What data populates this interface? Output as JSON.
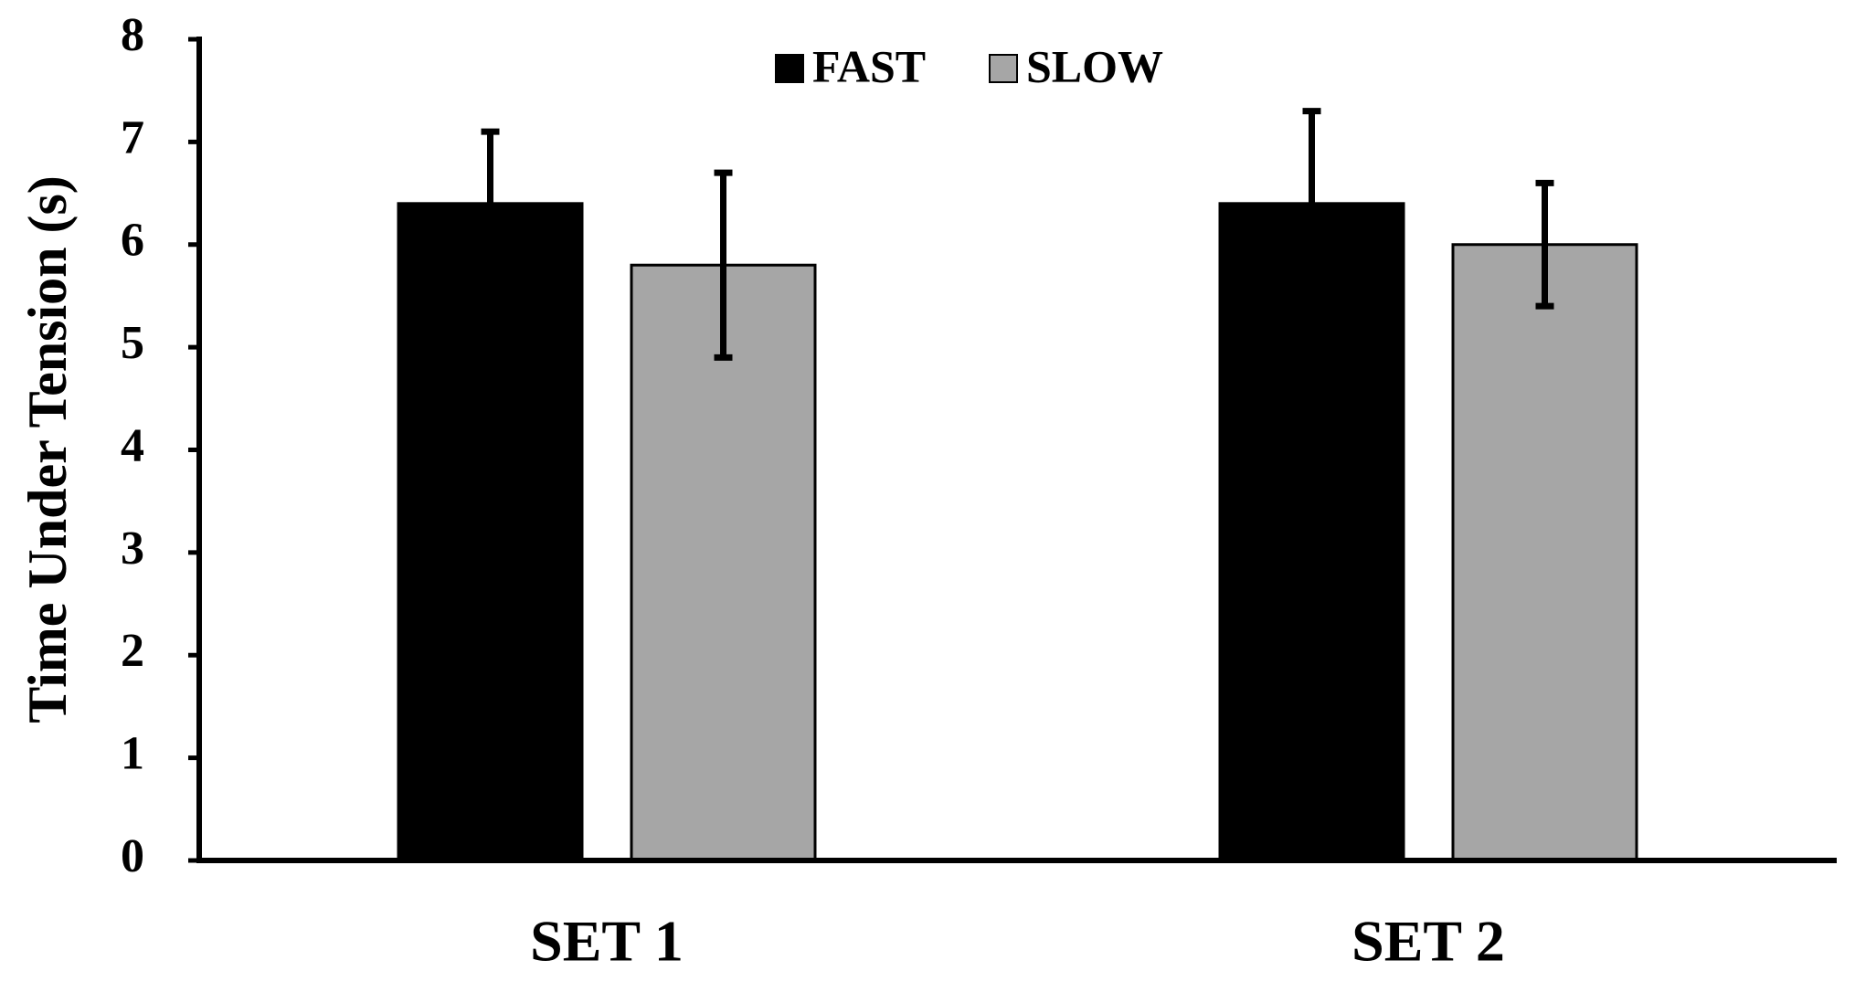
{
  "chart_data": {
    "type": "bar",
    "y_label": "Time Under Tension (s)",
    "categories": [
      "SET 1",
      "SET 2"
    ],
    "series": [
      {
        "name": "FAST",
        "color": "#000000",
        "values": [
          6.4,
          6.4
        ],
        "errors": [
          0.7,
          0.9
        ]
      },
      {
        "name": "SLOW",
        "color": "#a6a6a6",
        "values": [
          5.8,
          6.0
        ],
        "errors": [
          0.9,
          0.6
        ]
      }
    ],
    "ylim": [
      0,
      8
    ],
    "yticks": [
      0,
      1,
      2,
      3,
      4,
      5,
      6,
      7,
      8
    ],
    "legend": "top"
  }
}
